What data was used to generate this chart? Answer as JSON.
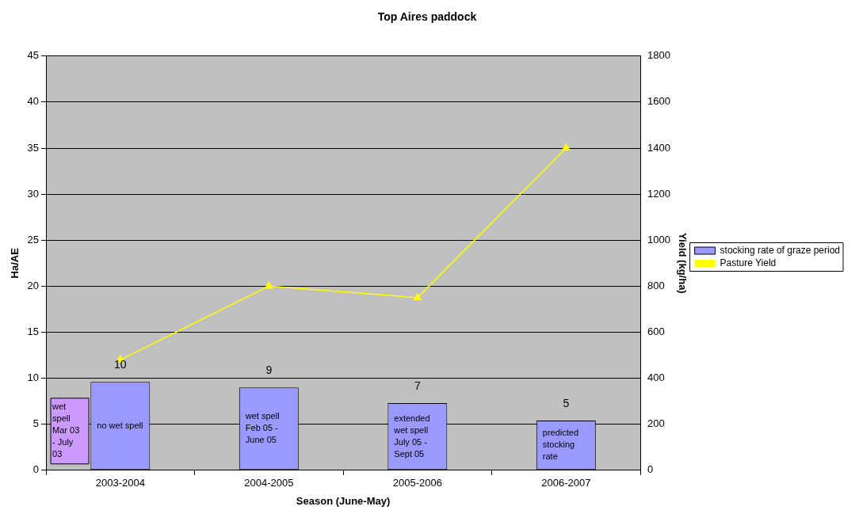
{
  "chart_data": {
    "type": "bar",
    "title": "Top Aires paddock",
    "xlabel": "Season (June-May)",
    "ylabel": "Ha/AE",
    "y2label": "Yield (kg/ha)",
    "categories": [
      "2003-2004",
      "2004-2005",
      "2005-2006",
      "2006-2007"
    ],
    "series": [
      {
        "name": "stocking rate of graze period",
        "color": "#9999ff",
        "values": [
          9.6,
          9.0,
          7.3,
          5.4
        ],
        "value_labels": [
          "10",
          "9",
          "7",
          "5"
        ]
      },
      {
        "name": "Pasture Yield",
        "type": "line",
        "axis": "y2",
        "color": "#ffff00",
        "marker": "triangle",
        "values": [
          480,
          800,
          750,
          1400
        ]
      }
    ],
    "ylim": [
      0,
      45
    ],
    "yticks": [
      0,
      5,
      10,
      15,
      20,
      25,
      30,
      35,
      40,
      45
    ],
    "y2lim": [
      0,
      1800
    ],
    "y2ticks": [
      0,
      200,
      400,
      600,
      800,
      1000,
      1200,
      1400,
      1600,
      1800
    ],
    "annotations": [
      "wet spell Mar 03 - July 03",
      "no wet spell",
      "wet spell Feb 05 - June 05",
      "extended wet spell July 05 - Sept 05",
      "predicted stocking rate"
    ],
    "grid": "y",
    "legend": "right"
  }
}
